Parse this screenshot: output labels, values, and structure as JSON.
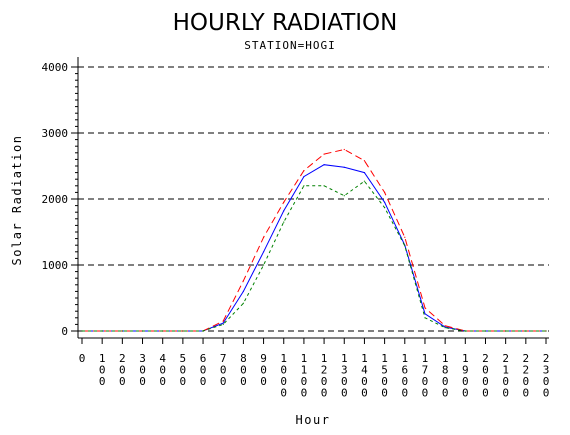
{
  "chart_data": {
    "type": "line",
    "title": "HOURLY RADIATION",
    "subtitle": "STATION=HOGI",
    "xlabel": "Hour",
    "ylabel": "Solar Radiation",
    "x": [
      0,
      100,
      200,
      300,
      400,
      500,
      600,
      700,
      800,
      900,
      1000,
      1100,
      1200,
      1300,
      1400,
      1500,
      1600,
      1700,
      1800,
      1900,
      2000,
      2100,
      2200,
      2300
    ],
    "x_tick_labels": [
      "0",
      "100",
      "200",
      "300",
      "400",
      "500",
      "600",
      "700",
      "800",
      "900",
      "1000",
      "1100",
      "1200",
      "1300",
      "1400",
      "1500",
      "1600",
      "1700",
      "1800",
      "1900",
      "2000",
      "2100",
      "2200",
      "2300"
    ],
    "y_ticks": [
      0,
      1000,
      2000,
      3000,
      4000
    ],
    "y_tick_labels": [
      "0",
      "1000",
      "2000",
      "3000",
      "4000"
    ],
    "ylim": [
      0,
      4000
    ],
    "grid": "horizontal dashed at major y ticks",
    "series": [
      {
        "color": "#0000ff",
        "dash": "solid",
        "values": [
          0,
          0,
          0,
          0,
          0,
          0,
          0,
          120,
          600,
          1200,
          1820,
          2340,
          2520,
          2480,
          2400,
          1950,
          1300,
          260,
          60,
          0,
          0,
          0,
          0,
          0
        ]
      },
      {
        "color": "#ff0000",
        "dash": "long-dash",
        "values": [
          0,
          0,
          0,
          0,
          0,
          0,
          0,
          150,
          760,
          1420,
          1950,
          2430,
          2680,
          2750,
          2580,
          2100,
          1420,
          350,
          80,
          0,
          0,
          0,
          0,
          0
        ]
      },
      {
        "color": "#008000",
        "dash": "short-dash",
        "values": [
          0,
          0,
          0,
          0,
          0,
          0,
          0,
          100,
          420,
          1000,
          1650,
          2200,
          2200,
          2050,
          2270,
          1870,
          1290,
          200,
          50,
          0,
          0,
          0,
          0,
          0
        ]
      }
    ]
  }
}
